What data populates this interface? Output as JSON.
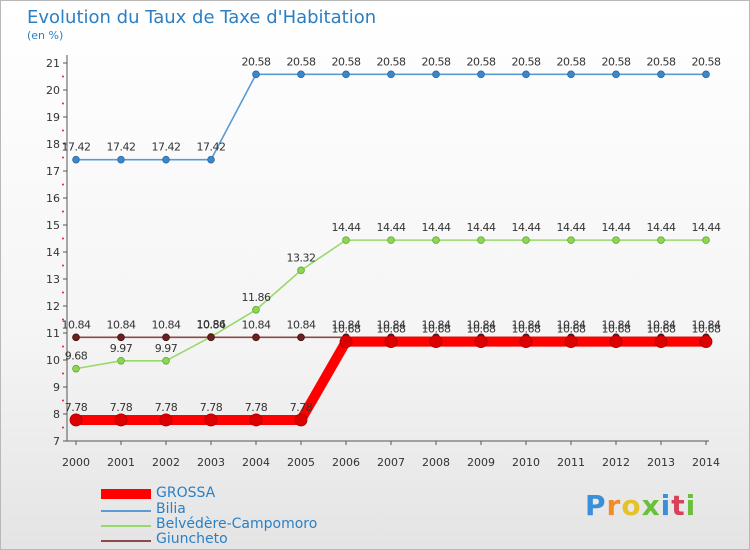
{
  "header": {
    "title": "Evolution du Taux de Taxe d'Habitation",
    "subtitle": "(en %)"
  },
  "logo": {
    "text": "Proxiti"
  },
  "chart_data": {
    "type": "line",
    "title": "Evolution du Taux de Taxe d'Habitation",
    "subtitle": "(en %)",
    "xlabel": "",
    "ylabel": "",
    "x": [
      "2000",
      "2001",
      "2002",
      "2003",
      "2004",
      "2005",
      "2006",
      "2007",
      "2008",
      "2009",
      "2010",
      "2011",
      "2012",
      "2013",
      "2014"
    ],
    "yticks": [
      7,
      8,
      9,
      10,
      11,
      12,
      13,
      14,
      15,
      16,
      17,
      18,
      19,
      20,
      21
    ],
    "ylim": [
      7,
      21
    ],
    "grid": false,
    "legend_position": "bottom-left",
    "series": [
      {
        "name": "GROSSA",
        "color": "#ff0000",
        "values": [
          7.78,
          7.78,
          7.78,
          7.78,
          7.78,
          7.78,
          10.68,
          10.68,
          10.68,
          10.68,
          10.68,
          10.68,
          10.68,
          10.68,
          10.68
        ],
        "labels": [
          "7.78",
          "7.78",
          "7.78",
          "7.78",
          "7.78",
          "7.78",
          "10.68",
          "10.68",
          "10.68",
          "10.68",
          "10.68",
          "10.68",
          "10.68",
          "10.68",
          "10.68"
        ]
      },
      {
        "name": "Bilia",
        "color": "#5b9bd5",
        "values": [
          17.42,
          17.42,
          17.42,
          17.42,
          20.58,
          20.58,
          20.58,
          20.58,
          20.58,
          20.58,
          20.58,
          20.58,
          20.58,
          20.58,
          20.58
        ],
        "labels": [
          "17.42",
          "17.42",
          "17.42",
          "17.42",
          "20.58",
          "20.58",
          "20.58",
          "20.58",
          "20.58",
          "20.58",
          "20.58",
          "20.58",
          "20.58",
          "20.58",
          "20.58"
        ]
      },
      {
        "name": "Belvédère-Campomoro",
        "color": "#99d86b",
        "values": [
          9.68,
          9.97,
          9.97,
          10.86,
          11.86,
          13.32,
          14.44,
          14.44,
          14.44,
          14.44,
          14.44,
          14.44,
          14.44,
          14.44,
          14.44
        ],
        "labels": [
          "9.68",
          "9.97",
          "9.97",
          "10.86",
          "11.86",
          "13.32",
          "14.44",
          "14.44",
          "14.44",
          "14.44",
          "14.44",
          "14.44",
          "14.44",
          "14.44",
          "14.44"
        ]
      },
      {
        "name": "Giuncheto",
        "color": "#8b4a4a",
        "values": [
          10.84,
          10.84,
          10.84,
          10.84,
          10.84,
          10.84,
          10.84,
          10.84,
          10.84,
          10.84,
          10.84,
          10.84,
          10.84,
          10.84,
          10.84
        ],
        "labels": [
          "10.84",
          "10.84",
          "10.84",
          "10.84",
          "10.84",
          "10.84",
          "10.84",
          "10.84",
          "10.84",
          "10.84",
          "10.84",
          "10.84",
          "10.84",
          "10.84",
          "10.84"
        ]
      }
    ]
  }
}
